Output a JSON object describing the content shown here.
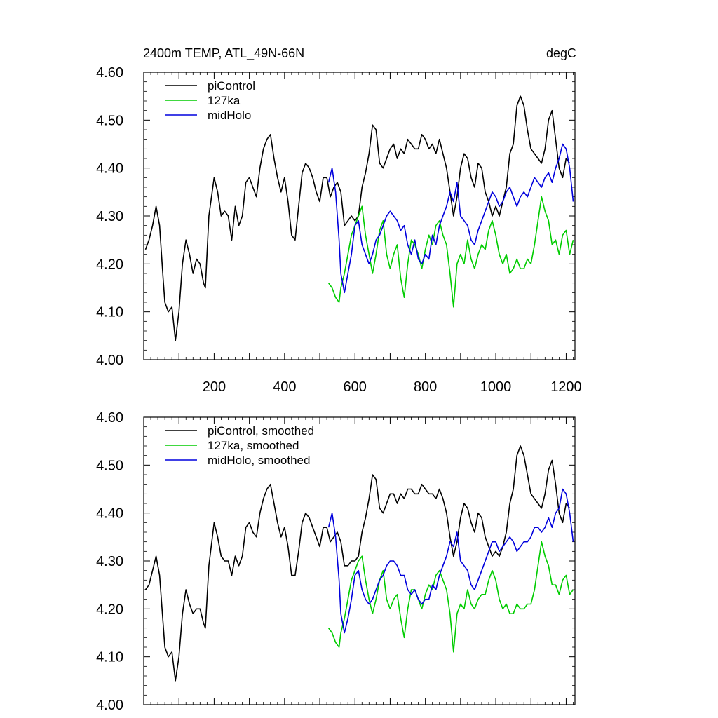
{
  "chart_data": [
    {
      "type": "line",
      "title": "2400m TEMP, ATL_49N-66N",
      "units": "degC",
      "xlabel": "",
      "ylabel": "",
      "xlim": [
        0,
        1225
      ],
      "ylim": [
        4.0,
        4.6
      ],
      "xticks": [
        200,
        400,
        600,
        800,
        1000,
        1200
      ],
      "xtick_labels": [
        "200",
        "400",
        "600",
        "800",
        "1000",
        "1200"
      ],
      "yticks": [
        4.0,
        4.1,
        4.2,
        4.3,
        4.4,
        4.5,
        4.6
      ],
      "ytick_labels": [
        "4.00",
        "4.10",
        "4.20",
        "4.30",
        "4.40",
        "4.50",
        "4.60"
      ],
      "legend_position": "top-left",
      "series": [
        {
          "name": "piControl",
          "color": "#000000",
          "x": [
            5,
            15,
            25,
            35,
            45,
            55,
            60,
            70,
            80,
            90,
            100,
            110,
            120,
            130,
            140,
            150,
            160,
            170,
            175,
            185,
            200,
            210,
            220,
            230,
            240,
            250,
            260,
            270,
            280,
            290,
            300,
            310,
            320,
            330,
            340,
            350,
            360,
            370,
            380,
            390,
            400,
            410,
            420,
            430,
            440,
            450,
            460,
            470,
            480,
            490,
            500,
            510,
            520,
            530,
            540,
            550,
            560,
            570,
            580,
            590,
            600,
            610,
            620,
            630,
            640,
            650,
            660,
            670,
            680,
            690,
            700,
            710,
            720,
            730,
            740,
            750,
            760,
            770,
            780,
            790,
            800,
            810,
            820,
            830,
            840,
            850,
            860,
            870,
            880,
            890,
            900,
            910,
            920,
            930,
            940,
            950,
            960,
            970,
            980,
            990,
            1000,
            1010,
            1020,
            1030,
            1040,
            1050,
            1060,
            1070,
            1080,
            1090,
            1100,
            1110,
            1120,
            1130,
            1140,
            1150,
            1160,
            1170,
            1180,
            1190,
            1200,
            1210
          ],
          "values": [
            4.23,
            4.25,
            4.28,
            4.32,
            4.28,
            4.17,
            4.12,
            4.1,
            4.11,
            4.04,
            4.1,
            4.2,
            4.25,
            4.22,
            4.18,
            4.21,
            4.2,
            4.16,
            4.15,
            4.3,
            4.38,
            4.35,
            4.3,
            4.31,
            4.3,
            4.25,
            4.32,
            4.28,
            4.3,
            4.37,
            4.38,
            4.36,
            4.34,
            4.4,
            4.44,
            4.46,
            4.47,
            4.42,
            4.38,
            4.35,
            4.38,
            4.33,
            4.26,
            4.25,
            4.32,
            4.39,
            4.41,
            4.4,
            4.38,
            4.35,
            4.33,
            4.38,
            4.38,
            4.34,
            4.36,
            4.37,
            4.35,
            4.28,
            4.29,
            4.3,
            4.29,
            4.3,
            4.36,
            4.39,
            4.43,
            4.49,
            4.48,
            4.41,
            4.4,
            4.42,
            4.44,
            4.45,
            4.42,
            4.44,
            4.43,
            4.46,
            4.45,
            4.44,
            4.44,
            4.47,
            4.46,
            4.44,
            4.45,
            4.43,
            4.46,
            4.43,
            4.4,
            4.35,
            4.3,
            4.34,
            4.4,
            4.43,
            4.42,
            4.38,
            4.36,
            4.41,
            4.4,
            4.35,
            4.33,
            4.3,
            4.32,
            4.3,
            4.33,
            4.36,
            4.43,
            4.45,
            4.53,
            4.55,
            4.53,
            4.48,
            4.44,
            4.43,
            4.42,
            4.41,
            4.44,
            4.5,
            4.52,
            4.46,
            4.4,
            4.38,
            4.42,
            4.41
          ],
          "smoothed_values": [
            4.24,
            4.25,
            4.28,
            4.31,
            4.27,
            4.17,
            4.12,
            4.1,
            4.11,
            4.05,
            4.1,
            4.19,
            4.24,
            4.21,
            4.19,
            4.2,
            4.2,
            4.17,
            4.16,
            4.29,
            4.38,
            4.35,
            4.31,
            4.3,
            4.3,
            4.27,
            4.31,
            4.29,
            4.31,
            4.37,
            4.38,
            4.36,
            4.35,
            4.4,
            4.43,
            4.45,
            4.46,
            4.42,
            4.38,
            4.35,
            4.37,
            4.33,
            4.27,
            4.27,
            4.32,
            4.38,
            4.4,
            4.39,
            4.37,
            4.35,
            4.33,
            4.37,
            4.37,
            4.34,
            4.35,
            4.36,
            4.34,
            4.29,
            4.29,
            4.3,
            4.3,
            4.31,
            4.36,
            4.39,
            4.43,
            4.48,
            4.47,
            4.41,
            4.4,
            4.42,
            4.44,
            4.44,
            4.42,
            4.44,
            4.43,
            4.45,
            4.45,
            4.44,
            4.44,
            4.46,
            4.45,
            4.44,
            4.44,
            4.43,
            4.45,
            4.43,
            4.4,
            4.35,
            4.31,
            4.34,
            4.39,
            4.42,
            4.41,
            4.38,
            4.36,
            4.4,
            4.39,
            4.35,
            4.33,
            4.31,
            4.32,
            4.31,
            4.33,
            4.36,
            4.42,
            4.45,
            4.52,
            4.54,
            4.52,
            4.48,
            4.44,
            4.43,
            4.42,
            4.41,
            4.44,
            4.49,
            4.51,
            4.46,
            4.4,
            4.38,
            4.42,
            4.41
          ]
        },
        {
          "name": "127ka",
          "color": "#00cc00",
          "x": [
            525,
            535,
            545,
            555,
            560,
            570,
            580,
            590,
            600,
            610,
            620,
            630,
            640,
            650,
            660,
            670,
            680,
            690,
            700,
            710,
            720,
            730,
            740,
            750,
            760,
            770,
            780,
            790,
            800,
            810,
            820,
            830,
            840,
            850,
            860,
            870,
            880,
            890,
            900,
            910,
            920,
            930,
            940,
            950,
            960,
            970,
            980,
            990,
            1000,
            1010,
            1020,
            1030,
            1040,
            1050,
            1060,
            1070,
            1080,
            1090,
            1100,
            1110,
            1120,
            1130,
            1140,
            1150,
            1160,
            1170,
            1180,
            1190,
            1200,
            1210,
            1220
          ],
          "values": [
            4.16,
            4.15,
            4.13,
            4.12,
            4.15,
            4.18,
            4.22,
            4.26,
            4.28,
            4.3,
            4.32,
            4.26,
            4.22,
            4.18,
            4.22,
            4.27,
            4.29,
            4.22,
            4.19,
            4.22,
            4.24,
            4.17,
            4.13,
            4.2,
            4.25,
            4.24,
            4.22,
            4.19,
            4.23,
            4.26,
            4.24,
            4.28,
            4.29,
            4.26,
            4.24,
            4.18,
            4.11,
            4.2,
            4.22,
            4.2,
            4.25,
            4.21,
            4.19,
            4.22,
            4.24,
            4.23,
            4.27,
            4.29,
            4.26,
            4.22,
            4.2,
            4.22,
            4.18,
            4.19,
            4.21,
            4.19,
            4.19,
            4.21,
            4.2,
            4.24,
            4.29,
            4.34,
            4.31,
            4.29,
            4.24,
            4.25,
            4.22,
            4.26,
            4.27,
            4.22,
            4.25
          ],
          "smoothed_values": [
            4.16,
            4.15,
            4.13,
            4.12,
            4.15,
            4.18,
            4.22,
            4.26,
            4.28,
            4.3,
            4.31,
            4.26,
            4.22,
            4.19,
            4.22,
            4.26,
            4.28,
            4.22,
            4.2,
            4.22,
            4.23,
            4.18,
            4.14,
            4.2,
            4.24,
            4.24,
            4.22,
            4.2,
            4.23,
            4.25,
            4.24,
            4.27,
            4.28,
            4.26,
            4.24,
            4.19,
            4.11,
            4.19,
            4.21,
            4.2,
            4.24,
            4.21,
            4.2,
            4.22,
            4.23,
            4.23,
            4.26,
            4.28,
            4.26,
            4.22,
            4.2,
            4.21,
            4.19,
            4.19,
            4.21,
            4.2,
            4.2,
            4.21,
            4.21,
            4.24,
            4.29,
            4.34,
            4.31,
            4.29,
            4.25,
            4.25,
            4.23,
            4.26,
            4.27,
            4.23,
            4.24
          ]
        },
        {
          "name": "midHolo",
          "color": "#0000dd",
          "x": [
            525,
            535,
            545,
            555,
            560,
            570,
            580,
            590,
            600,
            610,
            620,
            630,
            640,
            650,
            660,
            670,
            680,
            690,
            700,
            710,
            720,
            730,
            740,
            750,
            760,
            770,
            780,
            790,
            800,
            810,
            820,
            830,
            840,
            850,
            860,
            870,
            880,
            890,
            900,
            910,
            920,
            930,
            940,
            950,
            960,
            970,
            980,
            990,
            1000,
            1010,
            1020,
            1030,
            1040,
            1050,
            1060,
            1070,
            1080,
            1090,
            1100,
            1110,
            1120,
            1130,
            1140,
            1150,
            1160,
            1170,
            1180,
            1190,
            1200,
            1210,
            1220
          ],
          "values": [
            4.37,
            4.4,
            4.35,
            4.25,
            4.18,
            4.14,
            4.18,
            4.22,
            4.28,
            4.29,
            4.24,
            4.22,
            4.2,
            4.22,
            4.25,
            4.26,
            4.28,
            4.3,
            4.31,
            4.3,
            4.29,
            4.27,
            4.28,
            4.24,
            4.22,
            4.25,
            4.21,
            4.2,
            4.22,
            4.21,
            4.26,
            4.24,
            4.28,
            4.3,
            4.32,
            4.35,
            4.33,
            4.37,
            4.3,
            4.29,
            4.28,
            4.25,
            4.24,
            4.27,
            4.29,
            4.31,
            4.33,
            4.35,
            4.34,
            4.32,
            4.33,
            4.35,
            4.36,
            4.34,
            4.32,
            4.34,
            4.35,
            4.34,
            4.36,
            4.38,
            4.37,
            4.36,
            4.38,
            4.39,
            4.37,
            4.4,
            4.42,
            4.45,
            4.44,
            4.4,
            4.33
          ],
          "smoothed_values": [
            4.37,
            4.4,
            4.35,
            4.26,
            4.19,
            4.15,
            4.18,
            4.22,
            4.27,
            4.28,
            4.24,
            4.22,
            4.21,
            4.22,
            4.24,
            4.26,
            4.27,
            4.29,
            4.3,
            4.3,
            4.29,
            4.27,
            4.27,
            4.24,
            4.23,
            4.24,
            4.22,
            4.21,
            4.22,
            4.22,
            4.25,
            4.24,
            4.27,
            4.29,
            4.31,
            4.34,
            4.33,
            4.36,
            4.3,
            4.29,
            4.28,
            4.25,
            4.24,
            4.26,
            4.28,
            4.3,
            4.32,
            4.34,
            4.34,
            4.32,
            4.33,
            4.34,
            4.35,
            4.34,
            4.32,
            4.33,
            4.34,
            4.34,
            4.35,
            4.37,
            4.37,
            4.36,
            4.37,
            4.39,
            4.37,
            4.4,
            4.41,
            4.45,
            4.44,
            4.4,
            4.34
          ]
        }
      ]
    },
    {
      "type": "line",
      "title": "",
      "xlabel": "",
      "ylabel": "",
      "xlim": [
        0,
        1225
      ],
      "ylim": [
        4.0,
        4.6
      ],
      "yticks": [
        4.0,
        4.1,
        4.2,
        4.3,
        4.4,
        4.5,
        4.6
      ],
      "ytick_labels": [
        "4.00",
        "4.10",
        "4.20",
        "4.30",
        "4.40",
        "4.50",
        "4.60"
      ],
      "legend_position": "top-left",
      "series_names": [
        "piControl, smoothed",
        "127ka, smoothed",
        "midHolo, smoothed"
      ]
    }
  ]
}
